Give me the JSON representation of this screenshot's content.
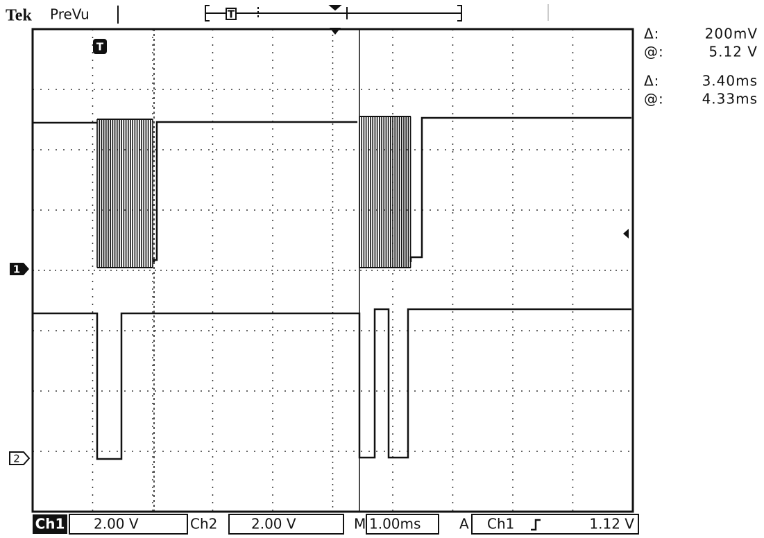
{
  "header": {
    "brand": "Tek",
    "mode": "PreVu"
  },
  "readouts": [
    {
      "label": "Δ:",
      "value": "200mV"
    },
    {
      "label": "@:",
      "value": "5.12 V"
    },
    {
      "label": "Δ:",
      "value": "3.40ms"
    },
    {
      "label": "@:",
      "value": "4.33ms"
    }
  ],
  "markers": {
    "trigger": "T",
    "channel1": "1",
    "channel2": "2"
  },
  "status_bar": {
    "ch1_label": "Ch1",
    "ch1_scale": "2.00 V",
    "ch2_label": "Ch2",
    "ch2_scale": "2.00 V",
    "time_label": "M",
    "time_scale": "1.00ms",
    "trigger_label": "A",
    "trigger_source": "Ch1",
    "trigger_level": "1.12 V"
  }
}
